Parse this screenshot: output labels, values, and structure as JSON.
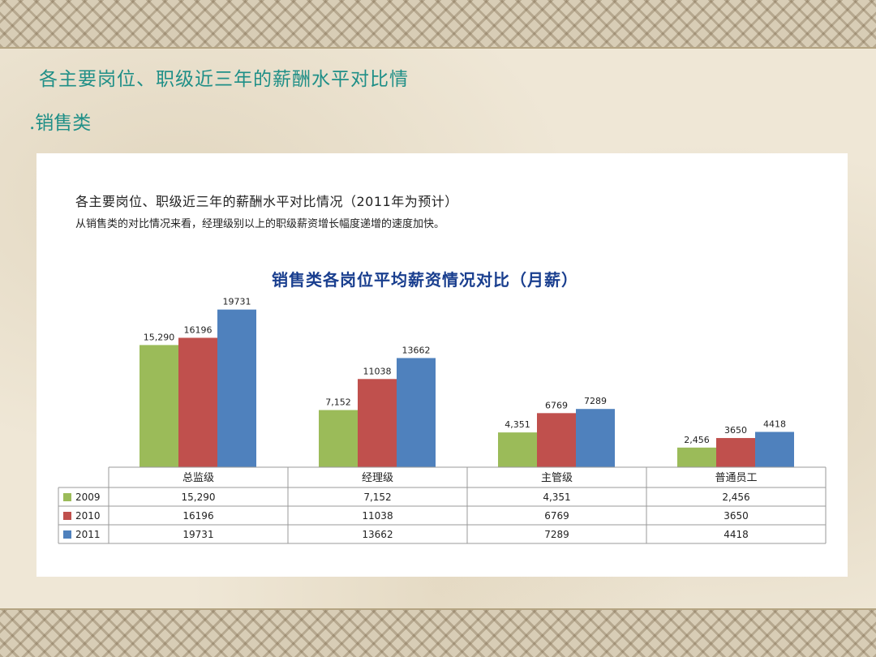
{
  "slide": {
    "title": "各主要岗位、职级近三年的薪酬水平对比情",
    "subtitle": ".销售类"
  },
  "panel": {
    "heading": "各主要岗位、职级近三年的薪酬水平对比情况（2011年为预计）",
    "description": "从销售类的对比情况来看，经理级别以上的职级薪资增长幅度递增的速度加快。"
  },
  "chart_data": {
    "type": "bar",
    "title": "销售类各岗位平均薪资情况对比（月薪）",
    "categories": [
      "总监级",
      "经理级",
      "主管级",
      "普通员工"
    ],
    "series": [
      {
        "name": "2009",
        "values": [
          15290,
          7152,
          4351,
          2456
        ],
        "labels": [
          "15,290",
          "7,152",
          "4,351",
          "2,456"
        ],
        "color": "#9bbb59"
      },
      {
        "name": "2010",
        "values": [
          16196,
          11038,
          6769,
          3650
        ],
        "labels": [
          "16196",
          "11038",
          "6769",
          "3650"
        ],
        "color": "#c0504d"
      },
      {
        "name": "2011",
        "values": [
          19731,
          13662,
          7289,
          4418
        ],
        "labels": [
          "19731",
          "13662",
          "7289",
          "4418"
        ],
        "color": "#4f81bd"
      }
    ],
    "ylim": [
      0,
      20000
    ],
    "grid": false,
    "legend": "data-table"
  }
}
